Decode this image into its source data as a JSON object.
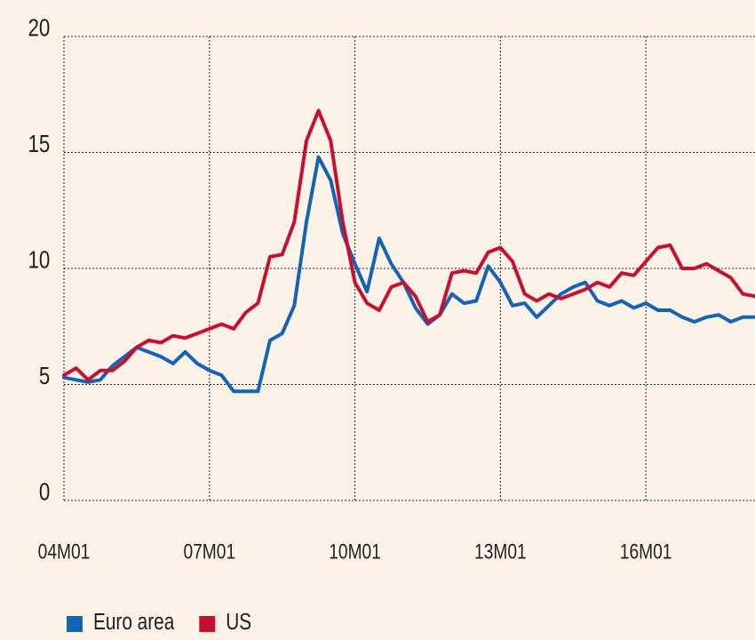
{
  "chart_data": {
    "type": "line",
    "x": [
      "2004-01",
      "2004-04",
      "2004-07",
      "2004-10",
      "2005-01",
      "2005-04",
      "2005-07",
      "2005-10",
      "2006-01",
      "2006-04",
      "2006-07",
      "2006-10",
      "2007-01",
      "2007-04",
      "2007-07",
      "2007-10",
      "2008-01",
      "2008-04",
      "2008-07",
      "2008-10",
      "2009-01",
      "2009-04",
      "2009-07",
      "2009-10",
      "2010-01",
      "2010-04",
      "2010-07",
      "2010-10",
      "2011-01",
      "2011-04",
      "2011-07",
      "2011-10",
      "2012-01",
      "2012-04",
      "2012-07",
      "2012-10",
      "2013-01",
      "2013-04",
      "2013-07",
      "2013-10",
      "2014-01",
      "2014-04",
      "2014-07",
      "2014-10",
      "2015-01",
      "2015-04",
      "2015-07",
      "2015-10",
      "2016-01",
      "2016-04",
      "2016-07",
      "2016-10",
      "2017-01",
      "2017-04",
      "2017-07",
      "2017-10",
      "2018-01",
      "2018-04"
    ],
    "series": [
      {
        "name": "Euro area",
        "color": "#1463b4",
        "values": [
          5.3,
          5.2,
          5.1,
          5.2,
          5.8,
          6.2,
          6.6,
          6.4,
          6.2,
          5.9,
          6.4,
          5.9,
          5.6,
          5.4,
          4.7,
          4.7,
          4.7,
          6.9,
          7.2,
          8.4,
          12.0,
          14.8,
          13.8,
          11.5,
          10.2,
          9.0,
          11.3,
          10.2,
          9.4,
          8.3,
          7.6,
          8.0,
          8.9,
          8.5,
          8.6,
          10.1,
          9.4,
          8.4,
          8.5,
          7.9,
          8.4,
          8.9,
          9.2,
          9.4,
          8.6,
          8.4,
          8.6,
          8.3,
          8.5,
          8.2,
          8.2,
          7.9,
          7.7,
          7.9,
          8.0,
          7.7,
          7.9,
          7.9
        ]
      },
      {
        "name": "US",
        "color": "#c8102e",
        "values": [
          5.4,
          5.7,
          5.2,
          5.6,
          5.6,
          6.0,
          6.6,
          6.9,
          6.8,
          7.1,
          7.0,
          7.2,
          7.4,
          7.6,
          7.4,
          8.1,
          8.5,
          10.5,
          10.6,
          12.0,
          15.5,
          16.8,
          15.5,
          12.0,
          9.4,
          8.5,
          8.2,
          9.2,
          9.4,
          8.8,
          7.7,
          8.0,
          9.8,
          9.9,
          9.8,
          10.7,
          10.9,
          10.3,
          8.9,
          8.6,
          8.9,
          8.7,
          8.9,
          9.1,
          9.4,
          9.2,
          9.8,
          9.7,
          10.3,
          10.9,
          11.0,
          10.0,
          10.0,
          10.2,
          9.9,
          9.6,
          8.9,
          8.8
        ]
      }
    ],
    "xlim": [
      "2004-01",
      "2018-04"
    ],
    "xticks": [
      {
        "value": "2004-01",
        "label": "04M01"
      },
      {
        "value": "2007-01",
        "label": "07M01"
      },
      {
        "value": "2010-01",
        "label": "10M01"
      },
      {
        "value": "2013-01",
        "label": "13M01"
      },
      {
        "value": "2016-01",
        "label": "16M01"
      }
    ],
    "ylim": [
      0,
      20
    ],
    "yticks": [
      0,
      5,
      10,
      15,
      20
    ],
    "grid": true,
    "legend": "bottom-left"
  }
}
